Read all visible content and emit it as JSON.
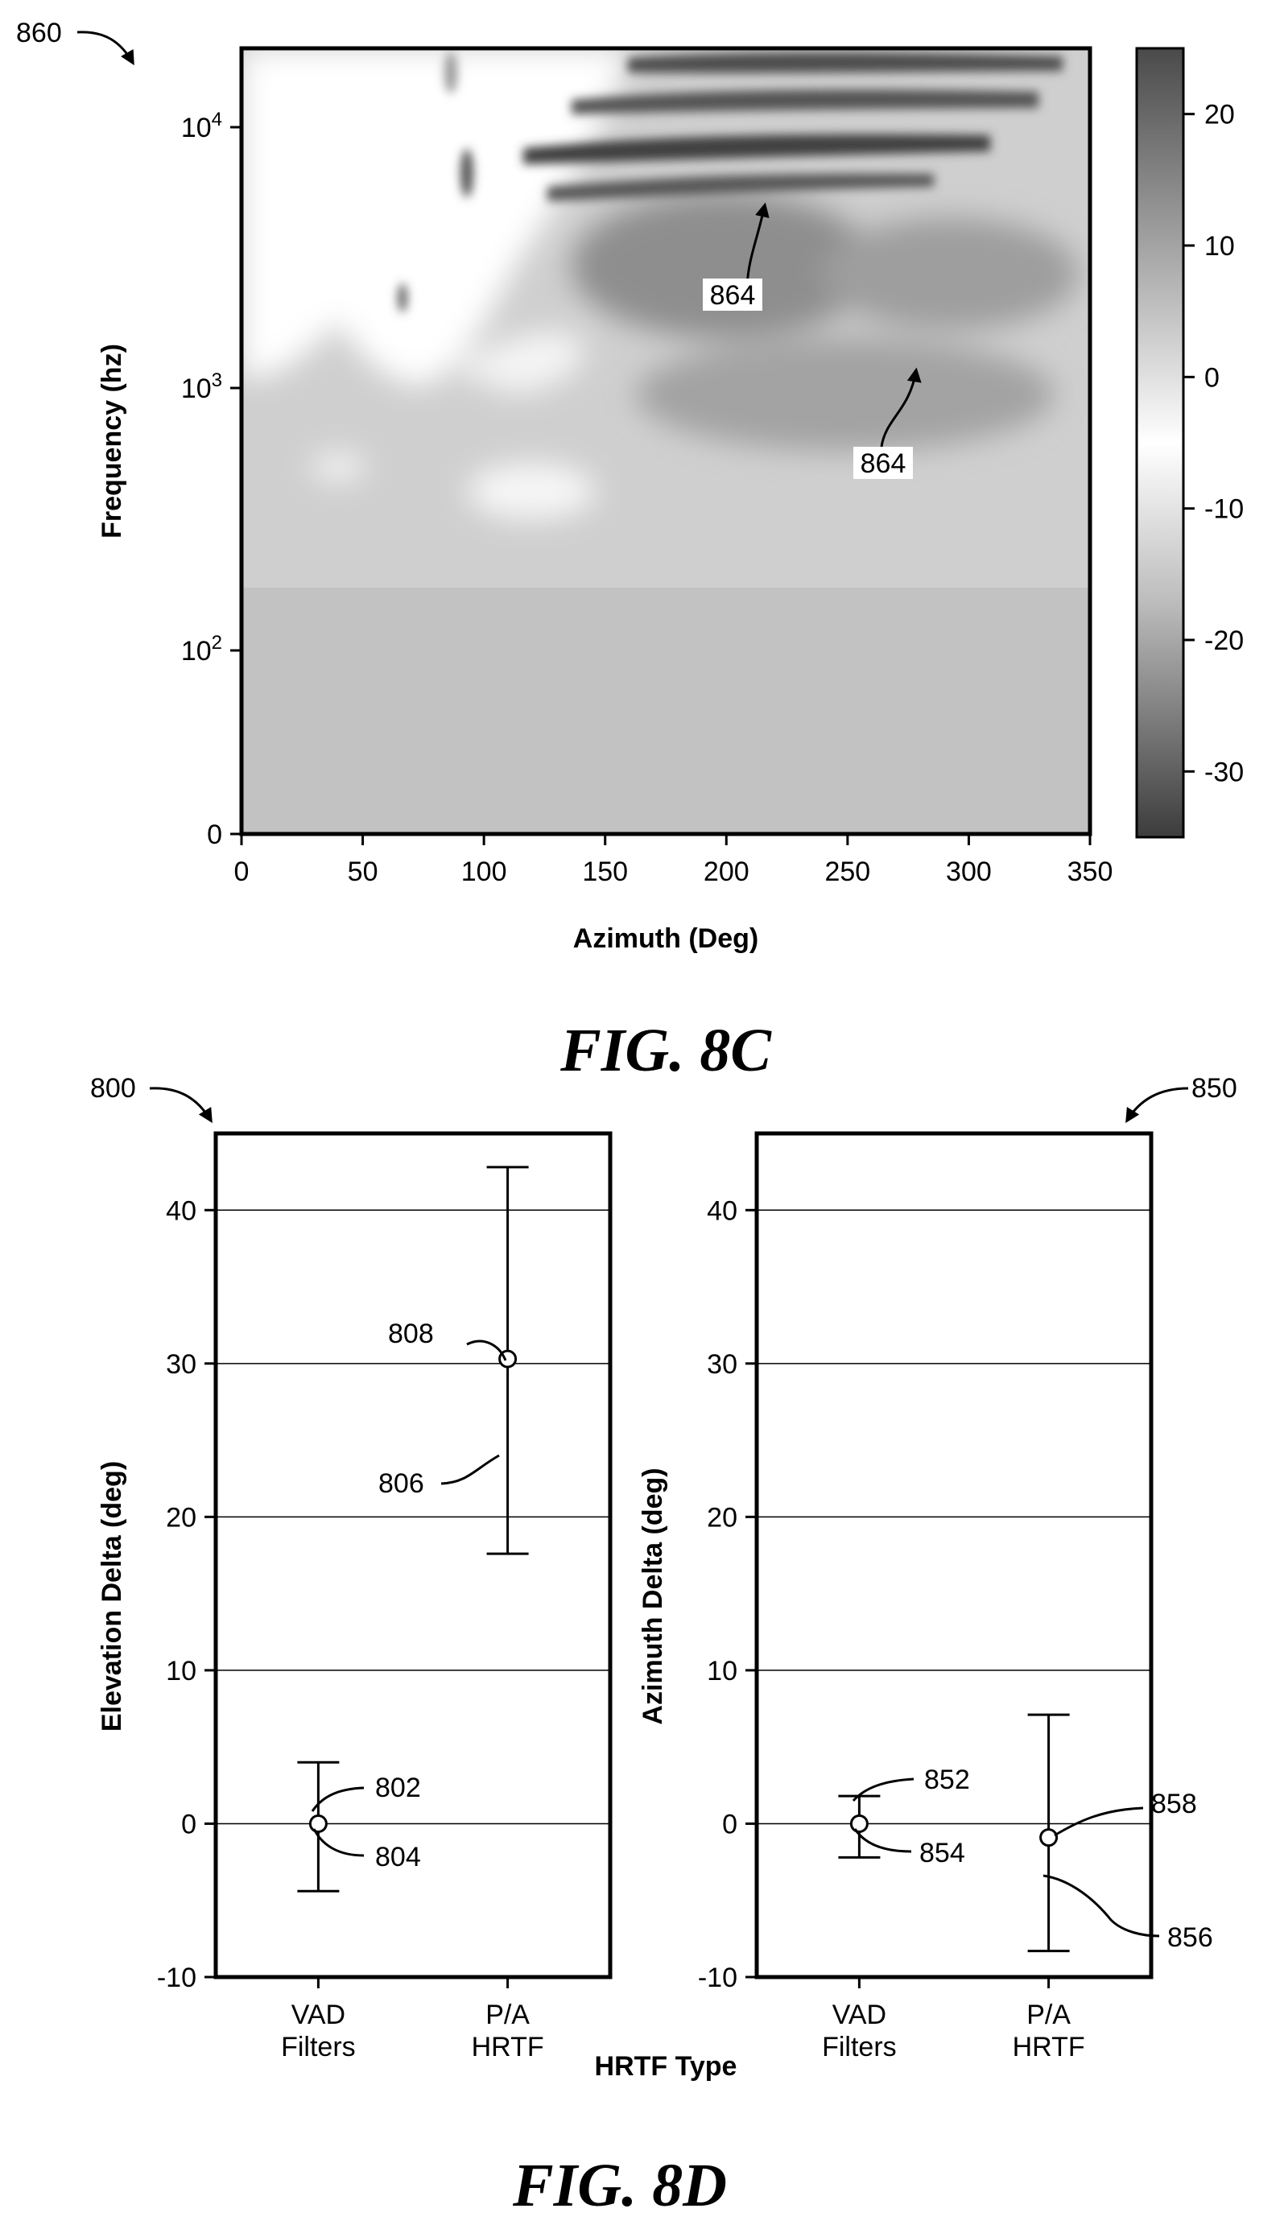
{
  "figure_c": {
    "ref_label": "860",
    "caption": "FIG. 8C",
    "annotations": [
      "864",
      "864"
    ]
  },
  "figure_d": {
    "caption": "FIG. 8D",
    "shared_xlabel": "HRTF Type",
    "left_ref_label": "800",
    "right_ref_label": "850",
    "left_refs": [
      "802",
      "804",
      "806",
      "808"
    ],
    "right_refs": [
      "852",
      "854",
      "856",
      "858"
    ]
  },
  "chart_data": [
    {
      "type": "heatmap",
      "title": "",
      "xlabel": "Azimuth (Deg)",
      "ylabel": "Frequency (hz)",
      "xlim": [
        0,
        350
      ],
      "x_ticks": [
        0,
        50,
        100,
        150,
        200,
        250,
        300,
        350
      ],
      "y_scale": "log",
      "y_ticks": [
        "0",
        "10^2",
        "10^3",
        "10^4"
      ],
      "colorbar": {
        "range": [
          -35,
          25
        ],
        "ticks": [
          20,
          10,
          0,
          -10,
          -20,
          -30
        ],
        "colormap": "grayscale (dark at extremes, white at 0)"
      },
      "regions": [
        {
          "label": "864",
          "azimuth": 215,
          "frequency_hz": 5000
        },
        {
          "label": "864",
          "azimuth": 280,
          "frequency_hz": 1100
        }
      ]
    },
    {
      "type": "scatter",
      "title": "",
      "xlabel": "",
      "ylabel": "Elevation Delta (deg)",
      "categories": [
        "VAD\nFilters",
        "P/A\nHRTF"
      ],
      "ylim": [
        -10,
        45
      ],
      "y_ticks": [
        -10,
        0,
        10,
        20,
        30,
        40
      ],
      "grid": true,
      "series": [
        {
          "means": [
            0,
            30.3
          ],
          "upper": [
            4,
            42.8
          ],
          "lower": [
            -4.4,
            17.6
          ]
        }
      ]
    },
    {
      "type": "scatter",
      "title": "",
      "xlabel": "",
      "ylabel": "Azimuth Delta (deg)",
      "categories": [
        "VAD\nFilters",
        "P/A\nHRTF"
      ],
      "ylim": [
        -10,
        45
      ],
      "y_ticks": [
        -10,
        0,
        10,
        20,
        30,
        40
      ],
      "grid": true,
      "series": [
        {
          "means": [
            0,
            -0.9
          ],
          "upper": [
            1.8,
            7.1
          ],
          "lower": [
            -2.2,
            -8.3
          ]
        }
      ]
    }
  ]
}
